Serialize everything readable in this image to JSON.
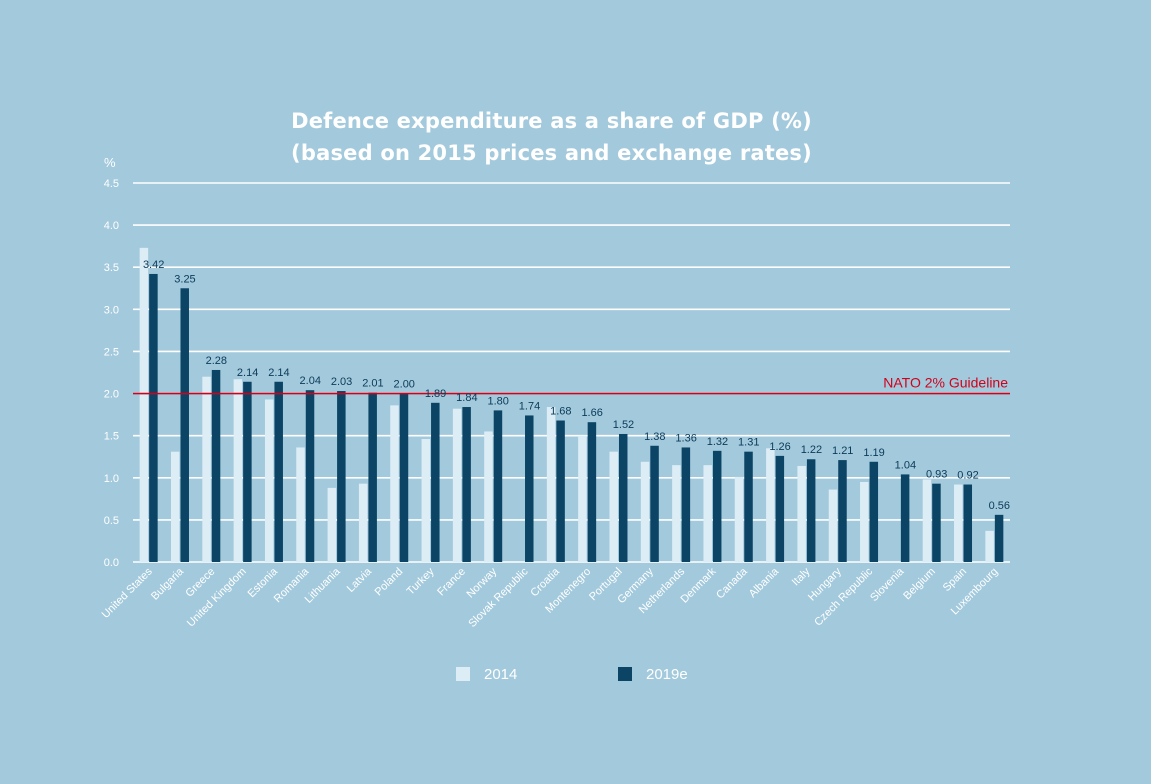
{
  "chart_data": {
    "type": "bar",
    "title": [
      "Defence expenditure as a share of GDP (%)",
      "(based on 2015 prices and exchange rates)"
    ],
    "ylabel": "%",
    "ylim": [
      0,
      4.5
    ],
    "yticks": [
      "0.0",
      "0.5",
      "1.0",
      "1.5",
      "2.0",
      "2.5",
      "3.0",
      "3.5",
      "4.0",
      "4.5"
    ],
    "grid": true,
    "categories": [
      "United States",
      "Bulgaria",
      "Greece",
      "United Kingdom",
      "Estonia",
      "Romania",
      "Lithuania",
      "Latvia",
      "Poland",
      "Turkey",
      "France",
      "Norway",
      "Slovak Republic",
      "Croatia",
      "Montenegro",
      "Portugal",
      "Germany",
      "Netherlands",
      "Denmark",
      "Canada",
      "Albania",
      "Italy",
      "Hungary",
      "Czech Republic",
      "Slovenia",
      "Belgium",
      "Spain",
      "Luxembourg"
    ],
    "series": [
      {
        "name": "2014",
        "color": "#dcedf6",
        "values": [
          3.73,
          1.31,
          2.2,
          2.17,
          1.93,
          1.36,
          0.88,
          0.93,
          1.86,
          1.46,
          1.82,
          1.55,
          0.0,
          1.84,
          1.5,
          1.31,
          1.19,
          1.15,
          1.15,
          1.01,
          1.35,
          1.14,
          0.86,
          0.95,
          0.0,
          0.98,
          0.92,
          0.37
        ]
      },
      {
        "name": "2019e",
        "color": "#0b4465",
        "values": [
          3.42,
          3.25,
          2.28,
          2.14,
          2.14,
          2.04,
          2.03,
          2.01,
          2.0,
          1.89,
          1.84,
          1.8,
          1.74,
          1.68,
          1.66,
          1.52,
          1.38,
          1.36,
          1.32,
          1.31,
          1.26,
          1.22,
          1.21,
          1.19,
          1.04,
          0.93,
          0.92,
          0.56
        ]
      }
    ],
    "data_labels": [
      "3.42",
      "3.25",
      "2.28",
      "2.14",
      "2.14",
      "2.04",
      "2.03",
      "2.01",
      "2.00",
      "1.89",
      "1.84",
      "1.80",
      "1.74",
      "1.68",
      "1.66",
      "1.52",
      "1.38",
      "1.36",
      "1.32",
      "1.31",
      "1.26",
      "1.22",
      "1.21",
      "1.19",
      "1.04",
      "0.93",
      "0.92",
      "0.56"
    ],
    "reference_line": {
      "value": 2.0,
      "label": "NATO 2% Guideline",
      "color": "#d0021b"
    },
    "legend_position": "bottom-center"
  },
  "colors": {
    "background": "#a3c9dc",
    "grid": "#ffffff",
    "text": "#ffffff",
    "label": "#0b3a58"
  }
}
